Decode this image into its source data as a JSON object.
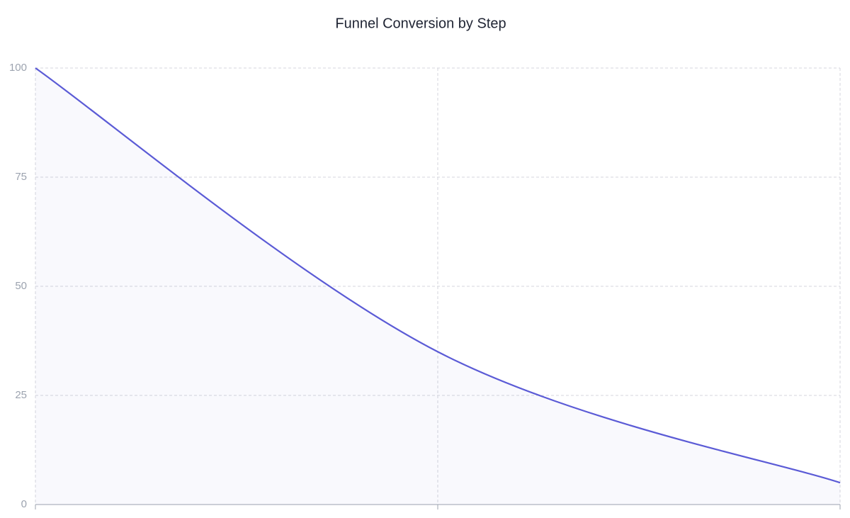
{
  "chart_data": {
    "type": "area",
    "title": "Funnel Conversion by Step",
    "categories": [
      null,
      null,
      null
    ],
    "values": [
      100,
      35,
      5
    ],
    "color": "#5b5bd6",
    "ylim": [
      0,
      100
    ],
    "yticks": [
      0,
      25,
      50,
      75,
      100
    ],
    "grid": true
  }
}
